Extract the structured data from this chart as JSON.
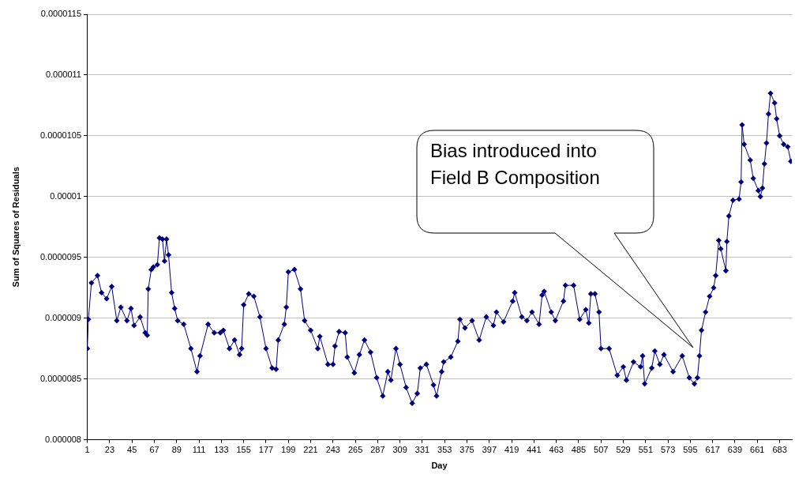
{
  "chart_data": {
    "type": "line",
    "xlabel": "Day",
    "ylabel": "Sum of Squares of Residuals",
    "xlim": [
      0.5,
      695
    ],
    "xticks": [
      1,
      23,
      45,
      67,
      89,
      111,
      133,
      155,
      177,
      199,
      221,
      243,
      265,
      287,
      309,
      331,
      353,
      375,
      397,
      419,
      441,
      463,
      485,
      507,
      529,
      551,
      573,
      595,
      617,
      639,
      661,
      683
    ],
    "ylim": [
      8e-06,
      1.15e-05
    ],
    "yticks": [
      {
        "value": 8e-06,
        "label": "0.000008"
      },
      {
        "value": 8.5e-06,
        "label": "0.0000085"
      },
      {
        "value": 9e-06,
        "label": "0.000009"
      },
      {
        "value": 9.5e-06,
        "label": "0.0000095"
      },
      {
        "value": 1e-05,
        "label": "0.00001"
      },
      {
        "value": 1.05e-05,
        "label": "0.0000105"
      },
      {
        "value": 1.1e-05,
        "label": "0.000011"
      },
      {
        "value": 1.15e-05,
        "label": "0.0000115"
      }
    ],
    "grid": "y",
    "legend": false,
    "marker": "diamond",
    "line_style": "solid",
    "series": [
      {
        "color": "#000080",
        "x": [
          1,
          2,
          5,
          11,
          15,
          20,
          25,
          30,
          34,
          40,
          44,
          47,
          53,
          58,
          60,
          61,
          64,
          66,
          70,
          72,
          75,
          77,
          79,
          81,
          84,
          87,
          90,
          96,
          103,
          109,
          112,
          120,
          126,
          132,
          135,
          141,
          146,
          151,
          153,
          155,
          160,
          165,
          171,
          177,
          183,
          187,
          189,
          195,
          197,
          199,
          205,
          211,
          215,
          221,
          228,
          230,
          238,
          243,
          245,
          249,
          255,
          257,
          264,
          269,
          274,
          280,
          286,
          292,
          297,
          300,
          305,
          309,
          315,
          321,
          326,
          329,
          335,
          342,
          345,
          350,
          352,
          359,
          366,
          368,
          373,
          380,
          387,
          394,
          401,
          404,
          411,
          420,
          422,
          429,
          434,
          439,
          446,
          449,
          451,
          458,
          462,
          470,
          472,
          480,
          486,
          492,
          495,
          497,
          501,
          505,
          507,
          515,
          523,
          529,
          532,
          539,
          546,
          548,
          550,
          557,
          560,
          565,
          569,
          578,
          587,
          594,
          599,
          602,
          604,
          606,
          610,
          614,
          618,
          620,
          623,
          625,
          630,
          631,
          633,
          637,
          643,
          645,
          646,
          648,
          654,
          657,
          662,
          664,
          666,
          668,
          670,
          672,
          674,
          678,
          680,
          683,
          687,
          691,
          694
        ],
        "values": [
          8.75e-06,
          8.99e-06,
          9.29e-06,
          9.35e-06,
          9.21e-06,
          9.16e-06,
          9.26e-06,
          8.98e-06,
          9.09e-06,
          8.98e-06,
          9.08e-06,
          8.94e-06,
          9.01e-06,
          8.88e-06,
          8.86e-06,
          9.24e-06,
          9.4e-06,
          9.42e-06,
          9.44e-06,
          9.66e-06,
          9.65e-06,
          9.47e-06,
          9.65e-06,
          9.52e-06,
          9.21e-06,
          9.08e-06,
          8.98e-06,
          8.95e-06,
          8.75e-06,
          8.56e-06,
          8.69e-06,
          8.95e-06,
          8.88e-06,
          8.88e-06,
          8.9e-06,
          8.75e-06,
          8.82e-06,
          8.7e-06,
          8.75e-06,
          9.11e-06,
          9.2e-06,
          9.18e-06,
          9.01e-06,
          8.75e-06,
          8.59e-06,
          8.58e-06,
          8.82e-06,
          8.95e-06,
          9.09e-06,
          9.38e-06,
          9.4e-06,
          9.24e-06,
          8.98e-06,
          8.9e-06,
          8.75e-06,
          8.85e-06,
          8.62e-06,
          8.62e-06,
          8.77e-06,
          8.89e-06,
          8.88e-06,
          8.68e-06,
          8.55e-06,
          8.7e-06,
          8.82e-06,
          8.72e-06,
          8.51e-06,
          8.36e-06,
          8.56e-06,
          8.49e-06,
          8.75e-06,
          8.62e-06,
          8.43e-06,
          8.3e-06,
          8.38e-06,
          8.59e-06,
          8.62e-06,
          8.45e-06,
          8.36e-06,
          8.56e-06,
          8.64e-06,
          8.68e-06,
          8.81e-06,
          8.99e-06,
          8.92e-06,
          8.98e-06,
          8.82e-06,
          9.01e-06,
          8.94e-06,
          9.05e-06,
          8.97e-06,
          9.14e-06,
          9.21e-06,
          9.01e-06,
          8.98e-06,
          9.05e-06,
          8.95e-06,
          9.19e-06,
          9.22e-06,
          9.05e-06,
          8.98e-06,
          9.14e-06,
          9.27e-06,
          9.27e-06,
          8.99e-06,
          9.07e-06,
          8.96e-06,
          9.2e-06,
          9.2e-06,
          9.05e-06,
          8.75e-06,
          8.75e-06,
          8.53e-06,
          8.6e-06,
          8.49e-06,
          8.64e-06,
          8.6e-06,
          8.69e-06,
          8.46e-06,
          8.59e-06,
          8.73e-06,
          8.62e-06,
          8.7e-06,
          8.56e-06,
          8.69e-06,
          8.51e-06,
          8.46e-06,
          8.51e-06,
          8.69e-06,
          8.9e-06,
          9.05e-06,
          9.18e-06,
          9.25e-06,
          9.35e-06,
          9.64e-06,
          9.57e-06,
          9.39e-06,
          9.63e-06,
          9.84e-06,
          9.97e-06,
          9.98e-06,
          1.012e-05,
          1.059e-05,
          1.043e-05,
          1.03e-05,
          1.015e-05,
          1.005e-05,
          1e-05,
          1.007e-05,
          1.027e-05,
          1.044e-05,
          1.068e-05,
          1.085e-05,
          1.077e-05,
          1.064e-05,
          1.05e-05,
          1.043e-05,
          1.041e-05,
          1.029e-05
        ]
      }
    ],
    "annotations": [
      "Bias introduced into Field B Composition"
    ]
  }
}
